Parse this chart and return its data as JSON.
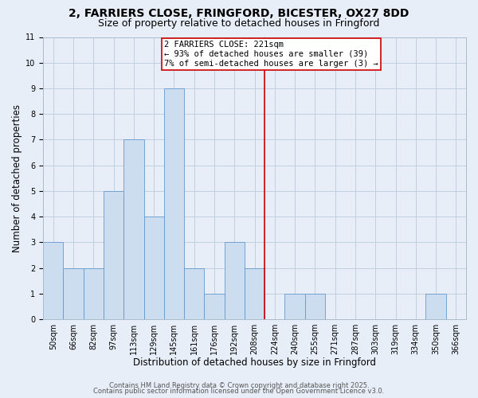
{
  "title1": "2, FARRIERS CLOSE, FRINGFORD, BICESTER, OX27 8DD",
  "title2": "Size of property relative to detached houses in Fringford",
  "xlabel": "Distribution of detached houses by size in Fringford",
  "ylabel": "Number of detached properties",
  "bar_labels": [
    "50sqm",
    "66sqm",
    "82sqm",
    "97sqm",
    "113sqm",
    "129sqm",
    "145sqm",
    "161sqm",
    "176sqm",
    "192sqm",
    "208sqm",
    "224sqm",
    "240sqm",
    "255sqm",
    "271sqm",
    "287sqm",
    "303sqm",
    "319sqm",
    "334sqm",
    "350sqm",
    "366sqm"
  ],
  "bar_heights": [
    3,
    2,
    2,
    5,
    7,
    4,
    9,
    2,
    1,
    3,
    2,
    0,
    1,
    1,
    0,
    0,
    0,
    0,
    0,
    1,
    0
  ],
  "bar_color": "#ccddf0",
  "bar_edge_color": "#6699cc",
  "grid_color": "#c0cfe0",
  "background_color": "#e8eef8",
  "red_line_color": "#cc0000",
  "red_line_x": 11.0,
  "annotation_text": "2 FARRIERS CLOSE: 221sqm\n← 93% of detached houses are smaller (39)\n7% of semi-detached houses are larger (3) →",
  "annotation_box_color": "#ffffff",
  "annotation_border_color": "#cc0000",
  "ylim": [
    0,
    11
  ],
  "yticks": [
    0,
    1,
    2,
    3,
    4,
    5,
    6,
    7,
    8,
    9,
    10,
    11
  ],
  "footer1": "Contains HM Land Registry data © Crown copyright and database right 2025.",
  "footer2": "Contains public sector information licensed under the Open Government Licence v3.0.",
  "title_fontsize": 10,
  "subtitle_fontsize": 9,
  "axis_label_fontsize": 8.5,
  "tick_fontsize": 7,
  "annotation_fontsize": 7.5,
  "footer_fontsize": 6
}
